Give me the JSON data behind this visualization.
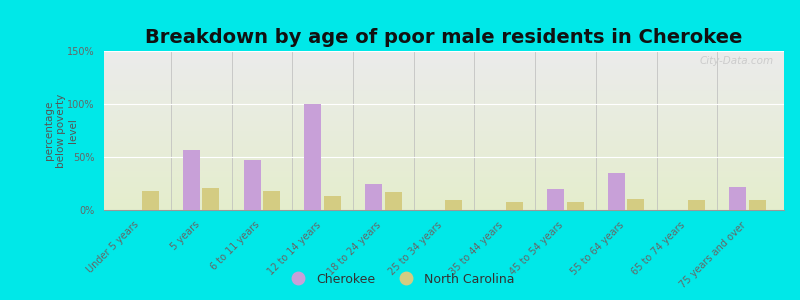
{
  "title": "Breakdown by age of poor male residents in Cherokee",
  "ylabel": "percentage\nbelow poverty\nlevel",
  "categories": [
    "Under 5 years",
    "5 years",
    "6 to 11 years",
    "12 to 14 years",
    "18 to 24 years",
    "25 to 34 years",
    "35 to 44 years",
    "45 to 54 years",
    "55 to 64 years",
    "65 to 74 years",
    "75 years and over"
  ],
  "cherokee": [
    0,
    57,
    47,
    100,
    25,
    0,
    0,
    20,
    35,
    0,
    22
  ],
  "north_carolina": [
    18,
    21,
    18,
    13,
    17,
    9,
    8,
    8,
    10,
    9,
    9
  ],
  "cherokee_color": "#c8a0d8",
  "nc_color": "#d4cc82",
  "ylim": [
    0,
    150
  ],
  "yticks": [
    0,
    50,
    100,
    150
  ],
  "ytick_labels": [
    "0%",
    "50%",
    "100%",
    "150%"
  ],
  "background_outer": "#00e8e8",
  "background_inner_top": "#ebebeb",
  "background_inner_bottom": "#e4edcc",
  "watermark": "City-Data.com",
  "title_fontsize": 14,
  "axis_label_fontsize": 7.5,
  "tick_fontsize": 7,
  "legend_fontsize": 9
}
